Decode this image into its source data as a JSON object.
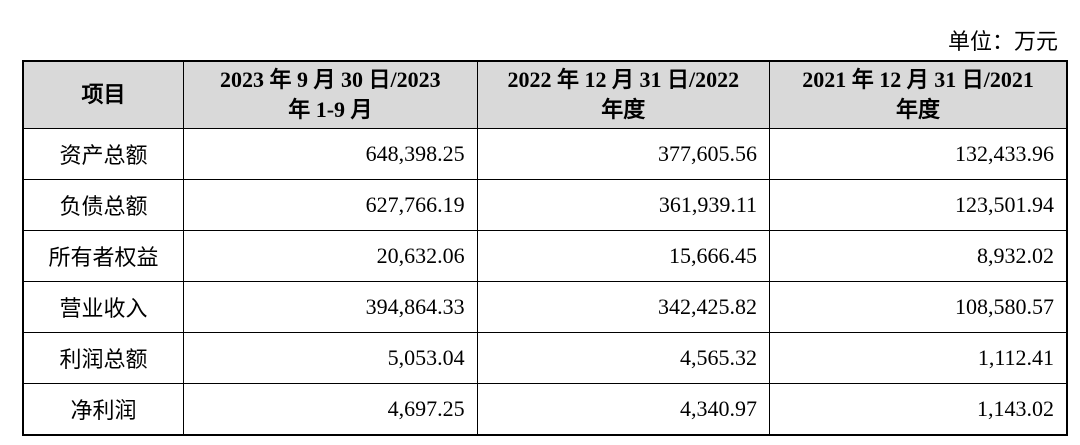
{
  "header": {
    "unit": "单位：万元"
  },
  "table": {
    "columns": [
      [
        "项目"
      ],
      [
        "2023 年 9 月 30 日/2023",
        "年 1-9 月"
      ],
      [
        "2022 年 12 月 31 日/2022",
        "年度"
      ],
      [
        "2021 年 12 月 31 日/2021",
        "年度"
      ]
    ],
    "rows": [
      [
        "资产总额",
        "648,398.25",
        "377,605.56",
        "132,433.96"
      ],
      [
        "负债总额",
        "627,766.19",
        "361,939.11",
        "123,501.94"
      ],
      [
        "所有者权益",
        "20,632.06",
        "15,666.45",
        "8,932.02"
      ],
      [
        "营业收入",
        "394,864.33",
        "342,425.82",
        "108,580.57"
      ],
      [
        "利润总额",
        "5,053.04",
        "4,565.32",
        "1,112.41"
      ],
      [
        "净利润",
        "4,697.25",
        "4,340.97",
        "1,143.02"
      ]
    ]
  }
}
